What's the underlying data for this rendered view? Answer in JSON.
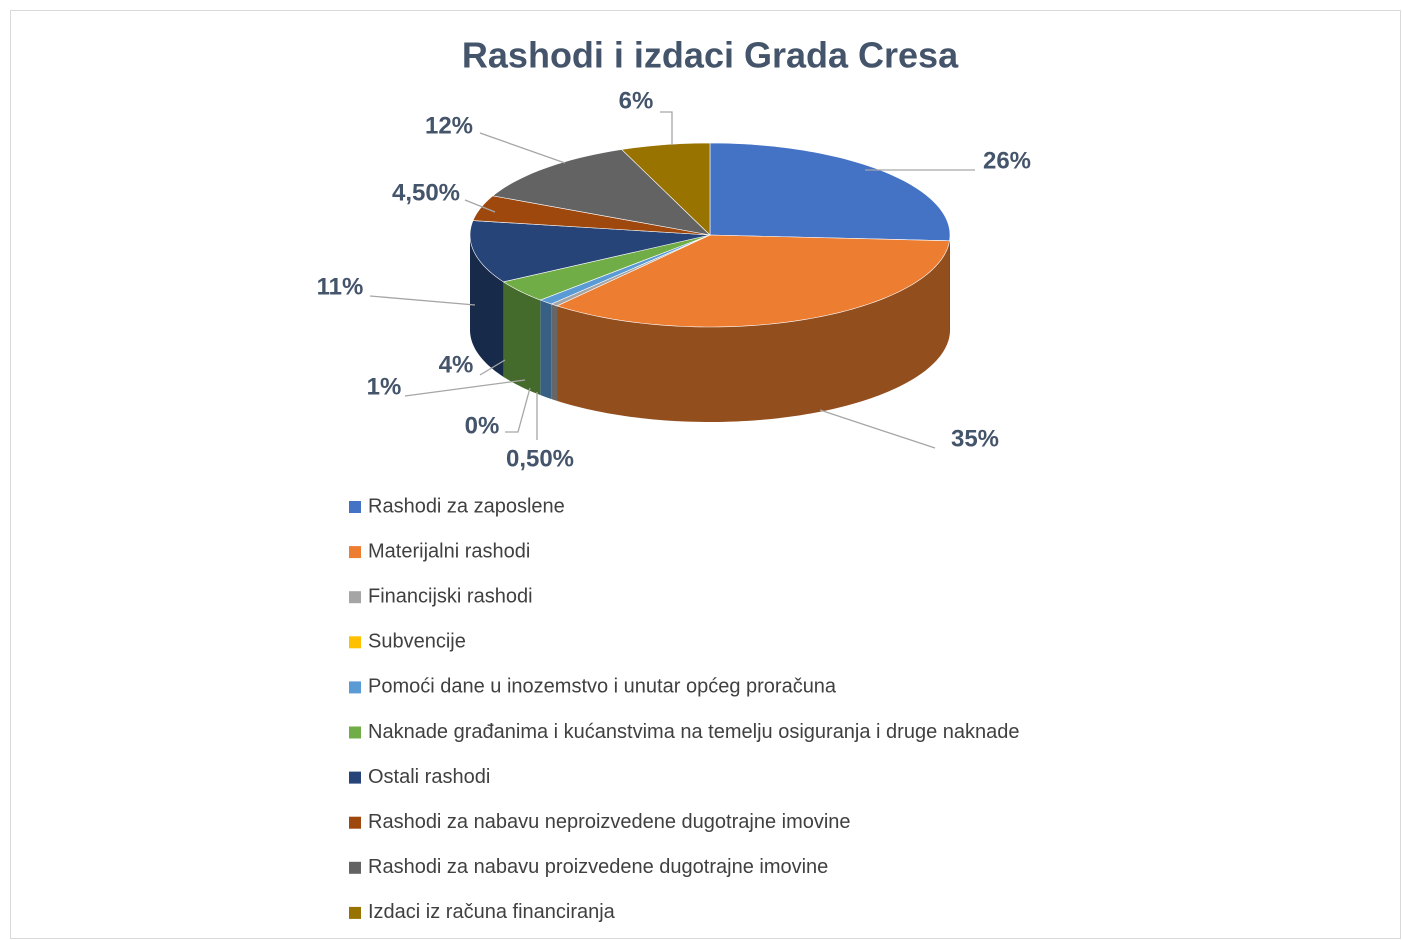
{
  "chart_data": {
    "type": "pie",
    "title": "Rashodi i izdaci Grada Cresa",
    "categories": [
      "Rashodi za zaposlene",
      "Materijalni rashodi",
      "Financijski rashodi",
      "Subvencije",
      "Pomoći dane u inozemstvo i unutar općeg proračuna",
      "Naknade građanima i kućanstvima na temelju osiguranja i druge naknade",
      "Ostali rashodi",
      "Rashodi za nabavu neproizvedene dugotrajne imovine",
      "Rashodi za nabavu proizvedene dugotrajne imovine",
      "Izdaci iz računa financiranja"
    ],
    "values": [
      26,
      35,
      0.5,
      0,
      1,
      4,
      11,
      4.5,
      12,
      6
    ],
    "value_labels": [
      "26%",
      "35%",
      "0,50%",
      "0%",
      "1%",
      "4%",
      "11%",
      "4,50%",
      "12%",
      "6%"
    ],
    "colors": [
      "#4472c4",
      "#ed7d31",
      "#a5a5a5",
      "#ffc000",
      "#5b9bd5",
      "#70ad47",
      "#264478",
      "#9e480e",
      "#636363",
      "#997300"
    ],
    "legend": "bottom"
  }
}
